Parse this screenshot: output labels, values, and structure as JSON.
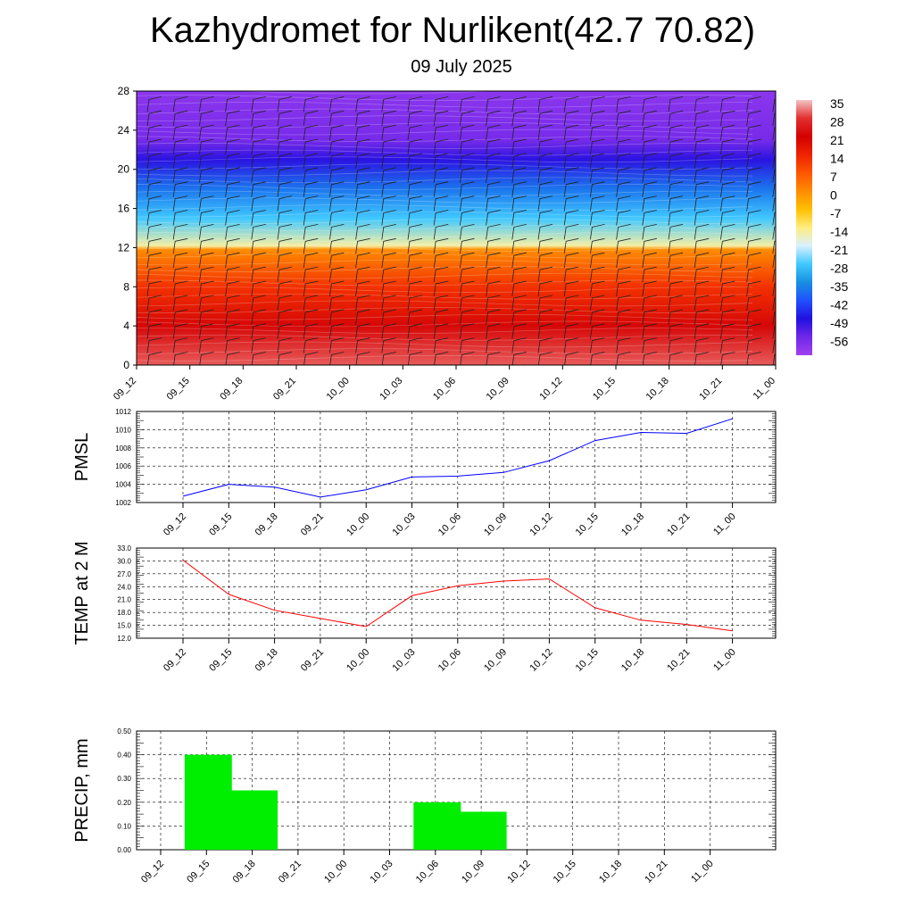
{
  "header": {
    "title": "Kazhydromet for Nurlikent(42.7 70.82)",
    "subtitle": "09 July 2025"
  },
  "chart_data": [
    {
      "type": "heatmap",
      "x_ticks": [
        "09_12",
        "09_15",
        "09_18",
        "09_21",
        "10_00",
        "10_03",
        "10_06",
        "10_09",
        "10_12",
        "10_15",
        "10_18",
        "10_21",
        "11_00"
      ],
      "y_ticks": [
        0,
        4,
        8,
        12,
        16,
        20,
        24,
        28
      ],
      "ylim": [
        0,
        28
      ],
      "colorbar_labels": [
        35,
        28,
        21,
        14,
        7,
        0,
        -7,
        -14,
        -21,
        -28,
        -35,
        -42,
        -49,
        -56
      ],
      "colorbar_colors": [
        "#f5c4c4",
        "#e33030",
        "#d40000",
        "#ee2200",
        "#ff5500",
        "#ff8c00",
        "#ffc000",
        "#ffee80",
        "#d8f0ff",
        "#40c8ff",
        "#1890e0",
        "#2050ff",
        "#2010e0",
        "#7028e8",
        "#a040f0"
      ],
      "column_profile": [
        {
          "alt": 0,
          "value": 30
        },
        {
          "alt": 4,
          "value": 22
        },
        {
          "alt": 8,
          "value": 12
        },
        {
          "alt": 11.8,
          "value": 0
        },
        {
          "alt": 12.2,
          "value": -16
        },
        {
          "alt": 15,
          "value": -28
        },
        {
          "alt": 18,
          "value": -38
        },
        {
          "alt": 21,
          "value": -50
        },
        {
          "alt": 23,
          "value": -57
        },
        {
          "alt": 28,
          "value": -60
        }
      ]
    },
    {
      "type": "line",
      "ylabel": "PMSL",
      "x": [
        "09_12",
        "09_15",
        "09_18",
        "09_21",
        "10_00",
        "10_03",
        "10_06",
        "10_09",
        "10_12",
        "10_15",
        "10_18",
        "10_21",
        "11_00"
      ],
      "series": [
        {
          "values": [
            1002.7,
            1004.0,
            1003.7,
            1002.6,
            1003.4,
            1004.8,
            1004.9,
            1005.3,
            1006.6,
            1008.8,
            1009.7,
            1009.6,
            1011.2
          ],
          "color": "#0000ff"
        }
      ],
      "ylim": [
        1002,
        1012
      ],
      "y_ticks": [
        "1002",
        "1004",
        "1006",
        "1008",
        "1010",
        "1012"
      ],
      "grid": true
    },
    {
      "type": "line",
      "ylabel": "TEMP at 2 M",
      "x": [
        "09_12",
        "09_15",
        "09_18",
        "09_21",
        "10_00",
        "10_03",
        "10_06",
        "10_09",
        "10_12",
        "10_15",
        "10_18",
        "10_21",
        "11_00"
      ],
      "series": [
        {
          "values": [
            30.2,
            22.2,
            18.5,
            16.6,
            14.7,
            21.9,
            24.2,
            25.3,
            25.8,
            19.1,
            16.2,
            15.2,
            13.7
          ],
          "color": "#ff0000"
        }
      ],
      "ylim": [
        12,
        33
      ],
      "y_ticks": [
        "12.0",
        "15.0",
        "18.0",
        "21.0",
        "24.0",
        "27.0",
        "30.0",
        "33.0"
      ],
      "grid": true
    },
    {
      "type": "bar",
      "ylabel": "PRECIP, mm",
      "categories": [
        "09_12",
        "09_15",
        "09_18",
        "09_21",
        "10_00",
        "10_03",
        "10_06",
        "10_09",
        "10_12",
        "10_15",
        "10_18",
        "10_21",
        "11_00"
      ],
      "values": [
        0,
        0.4,
        0.25,
        0,
        0,
        0,
        0.2,
        0.16,
        0,
        0,
        0,
        0,
        0
      ],
      "color": "#00ee00",
      "ylim": [
        0,
        0.5
      ],
      "y_ticks": [
        "0.00",
        "0.10",
        "0.20",
        "0.30",
        "0.40",
        "0.50"
      ],
      "grid": true
    }
  ]
}
